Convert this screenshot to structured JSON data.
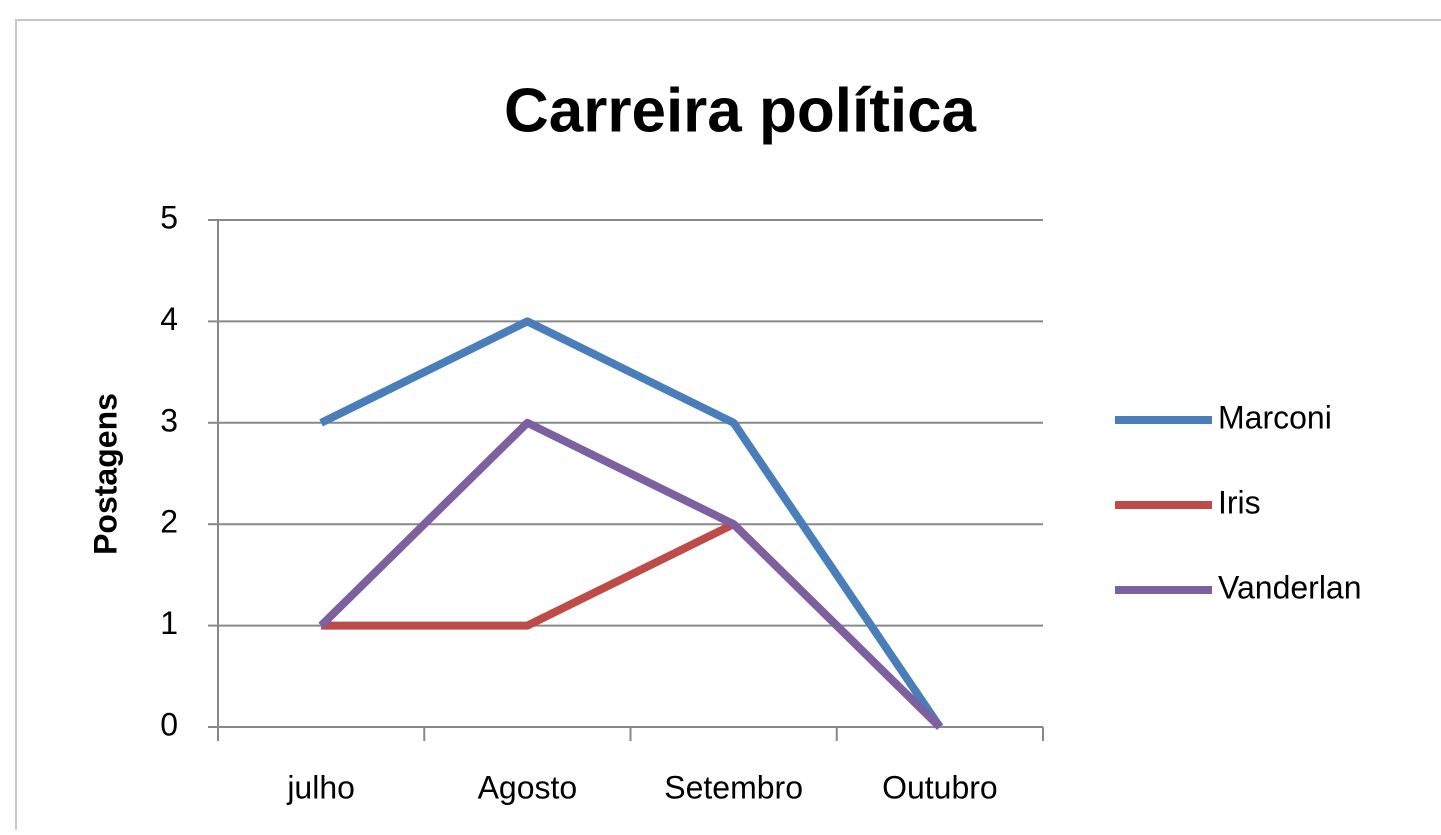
{
  "chart_data": {
    "type": "line",
    "title": "Carreira política",
    "ylabel": "Postagens",
    "categories": [
      "julho",
      "Agosto",
      "Setembro",
      "Outubro"
    ],
    "series": [
      {
        "name": "Marconi",
        "color": "#4a7ebb",
        "values": [
          3,
          4,
          3,
          0
        ]
      },
      {
        "name": "Iris",
        "color": "#be4b48",
        "values": [
          1,
          1,
          2,
          0
        ]
      },
      {
        "name": "Vanderlan",
        "color": "#7d60a0",
        "values": [
          1,
          3,
          2,
          0
        ]
      }
    ],
    "ylim": [
      0,
      5
    ],
    "yticks": [
      0,
      1,
      2,
      3,
      4,
      5
    ],
    "grid": true,
    "legend": "right"
  }
}
